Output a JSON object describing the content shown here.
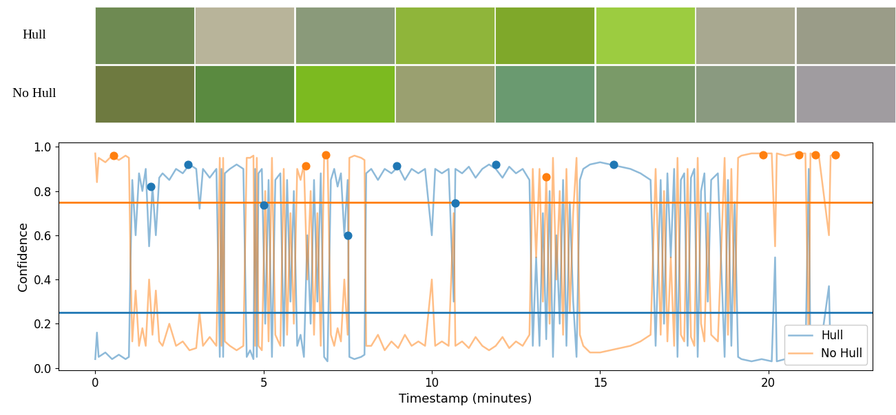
{
  "image_rows": [
    {
      "label": "Hull",
      "colors": [
        "#6e8a52",
        "#b8b49a",
        "#8a9a7a",
        "#8fb53a",
        "#7fa82a",
        "#9ccc40",
        "#a8a890",
        "#9a9c88"
      ]
    },
    {
      "label": "No Hull",
      "colors": [
        "#6e7a40",
        "#5a8a40",
        "#7cba20",
        "#9aa070",
        "#6a9a70",
        "#7a9a68",
        "#8a9a80",
        "#a09ca0"
      ]
    }
  ],
  "chart_data": {
    "type": "line",
    "xlabel": "Timestamp (minutes)",
    "ylabel": "Confidence",
    "xlim": [
      -1.1,
      23.1
    ],
    "ylim": [
      -0.01,
      1.02
    ],
    "xticks": [
      0,
      5,
      10,
      15,
      20
    ],
    "yticks": [
      {
        "value": 0.0,
        "label": "0.0"
      },
      {
        "value": 0.2,
        "label": "0.2"
      },
      {
        "value": 0.4,
        "label": "0.4"
      },
      {
        "value": 0.6,
        "label": "0.6"
      },
      {
        "value": 0.8,
        "label": "0.8"
      },
      {
        "value": 1.0,
        "label": "1.0"
      }
    ],
    "legend": "lower right",
    "x": [
      0.0,
      0.05,
      0.1,
      0.3,
      0.5,
      0.7,
      0.9,
      1.0,
      1.05,
      1.1,
      1.2,
      1.3,
      1.4,
      1.5,
      1.6,
      1.7,
      1.8,
      1.9,
      2.0,
      2.2,
      2.4,
      2.6,
      2.8,
      3.0,
      3.1,
      3.2,
      3.4,
      3.6,
      3.7,
      3.75,
      3.8,
      3.85,
      4.0,
      4.2,
      4.4,
      4.5,
      4.6,
      4.7,
      4.75,
      4.8,
      4.85,
      4.95,
      5.05,
      5.15,
      5.25,
      5.35,
      5.5,
      5.6,
      5.7,
      5.8,
      5.9,
      6.0,
      6.1,
      6.2,
      6.3,
      6.4,
      6.5,
      6.6,
      6.7,
      6.8,
      6.9,
      7.0,
      7.1,
      7.2,
      7.3,
      7.4,
      7.5,
      7.55,
      7.7,
      7.9,
      8.0,
      8.05,
      8.2,
      8.4,
      8.6,
      8.8,
      9.0,
      9.2,
      9.4,
      9.6,
      9.8,
      10.0,
      10.1,
      10.3,
      10.5,
      10.65,
      10.7,
      10.9,
      11.1,
      11.3,
      11.5,
      11.7,
      11.9,
      12.1,
      12.3,
      12.5,
      12.7,
      12.9,
      13.0,
      13.1,
      13.2,
      13.3,
      13.4,
      13.5,
      13.6,
      13.7,
      13.8,
      13.9,
      14.0,
      14.1,
      14.2,
      14.3,
      14.4,
      14.5,
      14.7,
      15.0,
      15.3,
      15.6,
      15.9,
      16.2,
      16.5,
      16.65,
      16.8,
      16.9,
      17.0,
      17.1,
      17.2,
      17.3,
      17.4,
      17.5,
      17.6,
      17.7,
      17.8,
      17.9,
      18.0,
      18.1,
      18.2,
      18.3,
      18.5,
      18.7,
      18.8,
      18.9,
      19.0,
      19.1,
      19.2,
      19.5,
      19.8,
      20.1,
      20.2,
      20.25,
      20.5,
      20.8,
      21.1,
      21.2,
      21.25,
      21.5,
      21.8,
      21.85,
      22.0
    ],
    "series": [
      {
        "name": "Hull",
        "color": "#1f77b4",
        "values": [
          0.04,
          0.16,
          0.05,
          0.07,
          0.04,
          0.06,
          0.04,
          0.05,
          0.5,
          0.85,
          0.6,
          0.88,
          0.8,
          0.9,
          0.55,
          0.82,
          0.6,
          0.86,
          0.88,
          0.85,
          0.9,
          0.88,
          0.92,
          0.9,
          0.72,
          0.9,
          0.86,
          0.9,
          0.05,
          0.9,
          0.05,
          0.88,
          0.9,
          0.92,
          0.9,
          0.05,
          0.08,
          0.04,
          0.9,
          0.05,
          0.88,
          0.9,
          0.2,
          0.85,
          0.05,
          0.85,
          0.88,
          0.1,
          0.85,
          0.3,
          0.8,
          0.1,
          0.15,
          0.05,
          0.6,
          0.2,
          0.85,
          0.3,
          0.88,
          0.05,
          0.03,
          0.85,
          0.9,
          0.82,
          0.88,
          0.6,
          0.85,
          0.05,
          0.04,
          0.05,
          0.06,
          0.88,
          0.9,
          0.85,
          0.9,
          0.88,
          0.91,
          0.85,
          0.9,
          0.88,
          0.9,
          0.6,
          0.9,
          0.88,
          0.9,
          0.3,
          0.9,
          0.88,
          0.91,
          0.86,
          0.9,
          0.92,
          0.9,
          0.86,
          0.91,
          0.88,
          0.9,
          0.85,
          0.1,
          0.5,
          0.1,
          0.7,
          0.13,
          0.8,
          0.05,
          0.6,
          0.2,
          0.85,
          0.1,
          0.75,
          0.3,
          0.05,
          0.85,
          0.9,
          0.92,
          0.93,
          0.92,
          0.91,
          0.9,
          0.88,
          0.85,
          0.1,
          0.85,
          0.2,
          0.88,
          0.5,
          0.9,
          0.05,
          0.85,
          0.88,
          0.1,
          0.86,
          0.9,
          0.05,
          0.8,
          0.88,
          0.3,
          0.85,
          0.88,
          0.05,
          0.85,
          0.1,
          0.75,
          0.05,
          0.04,
          0.03,
          0.04,
          0.03,
          0.5,
          0.03,
          0.04,
          0.03,
          0.04,
          0.9,
          0.03,
          0.04,
          0.37,
          0.04,
          0.03
        ]
      },
      {
        "name": "No Hull",
        "color": "#ff7f0e",
        "values": [
          0.97,
          0.84,
          0.95,
          0.93,
          0.96,
          0.94,
          0.96,
          0.95,
          0.45,
          0.12,
          0.35,
          0.1,
          0.18,
          0.1,
          0.4,
          0.15,
          0.35,
          0.12,
          0.1,
          0.2,
          0.1,
          0.12,
          0.08,
          0.09,
          0.25,
          0.1,
          0.14,
          0.1,
          0.95,
          0.1,
          0.95,
          0.12,
          0.1,
          0.08,
          0.1,
          0.95,
          0.95,
          0.96,
          0.1,
          0.95,
          0.1,
          0.08,
          0.8,
          0.12,
          0.95,
          0.15,
          0.1,
          0.9,
          0.15,
          0.7,
          0.2,
          0.9,
          0.85,
          0.92,
          0.4,
          0.8,
          0.15,
          0.7,
          0.1,
          0.95,
          0.97,
          0.15,
          0.1,
          0.18,
          0.12,
          0.4,
          0.15,
          0.95,
          0.96,
          0.95,
          0.94,
          0.1,
          0.1,
          0.15,
          0.08,
          0.12,
          0.09,
          0.15,
          0.1,
          0.12,
          0.1,
          0.4,
          0.1,
          0.12,
          0.1,
          0.7,
          0.1,
          0.12,
          0.09,
          0.14,
          0.1,
          0.08,
          0.1,
          0.14,
          0.09,
          0.12,
          0.1,
          0.15,
          0.9,
          0.5,
          0.9,
          0.3,
          0.87,
          0.2,
          0.95,
          0.4,
          0.8,
          0.15,
          0.9,
          0.25,
          0.7,
          0.95,
          0.15,
          0.1,
          0.07,
          0.07,
          0.08,
          0.09,
          0.1,
          0.12,
          0.15,
          0.9,
          0.15,
          0.8,
          0.12,
          0.5,
          0.1,
          0.95,
          0.15,
          0.12,
          0.9,
          0.14,
          0.1,
          0.95,
          0.2,
          0.12,
          0.7,
          0.15,
          0.12,
          0.95,
          0.15,
          0.9,
          0.25,
          0.95,
          0.96,
          0.97,
          0.97,
          0.97,
          0.55,
          0.97,
          0.96,
          0.97,
          0.97,
          0.08,
          0.97,
          0.96,
          0.6,
          0.96,
          0.97
        ]
      }
    ],
    "highlights": [
      {
        "color": "#1f77b4",
        "x": [
          1.65,
          2.75,
          5.0,
          7.5,
          8.95,
          10.7,
          11.9,
          15.4
        ],
        "values": [
          0.82,
          0.92,
          0.735,
          0.6,
          0.915,
          0.745,
          0.92,
          0.92
        ]
      },
      {
        "color": "#ff7f0e",
        "x": [
          0.55,
          6.25,
          6.85,
          13.4,
          19.85,
          20.9,
          21.4,
          22.0
        ],
        "values": [
          0.96,
          0.915,
          0.965,
          0.865,
          0.965,
          0.965,
          0.965,
          0.965
        ]
      }
    ],
    "thresholds": [
      {
        "value": 0.75,
        "color": "#ff7f0e"
      },
      {
        "value": 0.25,
        "color": "#1f77b4"
      }
    ]
  }
}
